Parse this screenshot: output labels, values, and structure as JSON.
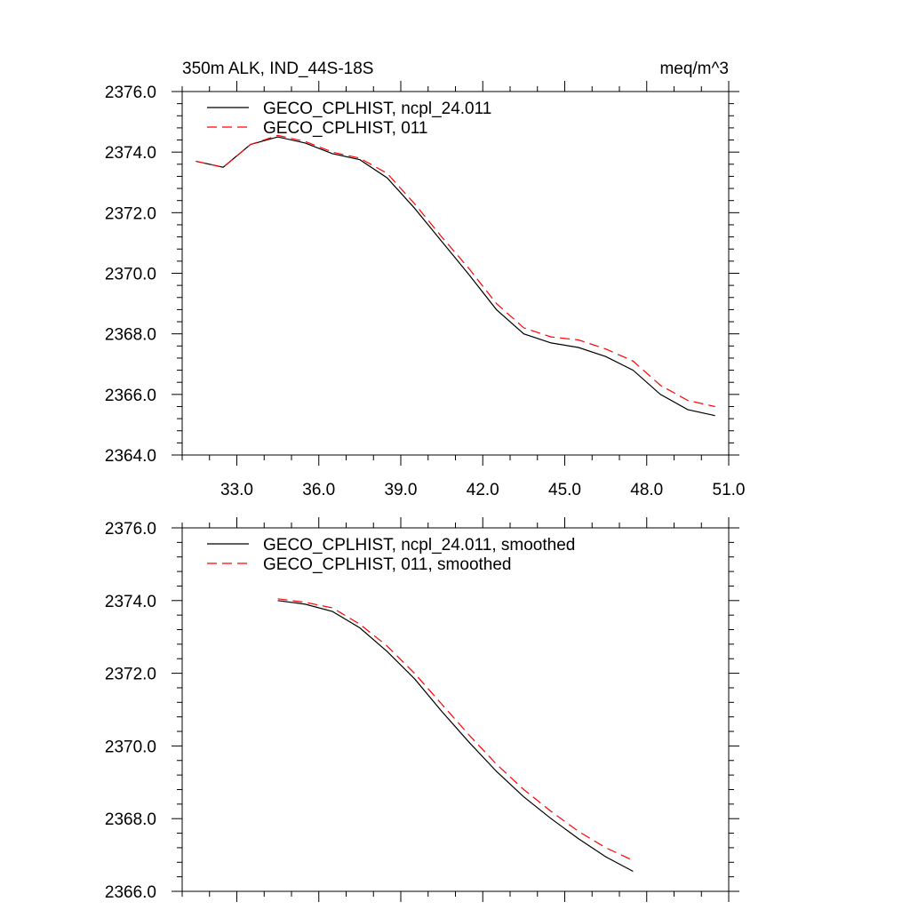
{
  "chart_data": [
    {
      "type": "line",
      "title_left": "350m ALK, IND_44S-18S",
      "title_right": "meq/m^3",
      "xlabel": "",
      "ylabel": "",
      "xlim": [
        31.0,
        51.0
      ],
      "ylim": [
        2364.0,
        2376.0
      ],
      "x_ticks": [
        33.0,
        36.0,
        39.0,
        42.0,
        45.0,
        48.0,
        51.0
      ],
      "x_tick_labels": [
        "33.0",
        "36.0",
        "39.0",
        "42.0",
        "45.0",
        "48.0",
        "51.0"
      ],
      "y_ticks": [
        2364.0,
        2366.0,
        2368.0,
        2370.0,
        2372.0,
        2374.0,
        2376.0
      ],
      "y_tick_labels": [
        "2364.0",
        "2366.0",
        "2368.0",
        "2370.0",
        "2372.0",
        "2374.0",
        "2376.0"
      ],
      "grid": false,
      "legend_position": "top-left",
      "x": [
        31.5,
        32.5,
        33.5,
        34.5,
        35.5,
        36.5,
        37.5,
        38.5,
        39.5,
        40.5,
        41.5,
        42.5,
        43.5,
        44.5,
        45.5,
        46.5,
        47.5,
        48.5,
        49.5,
        50.5
      ],
      "series": [
        {
          "name": "GECO_CPLHIST, ncpl_24.011",
          "color": "#000000",
          "dash": "solid",
          "values": [
            2373.7,
            2373.5,
            2374.25,
            2374.5,
            2374.3,
            2373.95,
            2373.75,
            2373.15,
            2372.15,
            2371.05,
            2369.95,
            2368.8,
            2368.0,
            2367.7,
            2367.55,
            2367.25,
            2366.8,
            2366.0,
            2365.5,
            2365.3
          ]
        },
        {
          "name": "GECO_CPLHIST, 011",
          "color": "#ff0000",
          "dash": "dashed",
          "values": [
            2373.7,
            2373.5,
            2374.25,
            2374.55,
            2374.35,
            2374.0,
            2373.8,
            2373.3,
            2372.3,
            2371.2,
            2370.15,
            2369.0,
            2368.2,
            2367.9,
            2367.8,
            2367.5,
            2367.1,
            2366.3,
            2365.8,
            2365.6
          ]
        }
      ]
    },
    {
      "type": "line",
      "xlabel": "",
      "ylabel": "",
      "xlim": [
        31.0,
        51.0
      ],
      "ylim": [
        2366.0,
        2376.0
      ],
      "x_ticks": [
        33.0,
        36.0,
        39.0,
        42.0,
        45.0,
        48.0,
        51.0
      ],
      "y_ticks": [
        2366.0,
        2368.0,
        2370.0,
        2372.0,
        2374.0,
        2376.0
      ],
      "y_tick_labels": [
        "2366.0",
        "2368.0",
        "2370.0",
        "2372.0",
        "2374.0",
        "2376.0"
      ],
      "grid": false,
      "legend_position": "top-left",
      "x": [
        34.5,
        35.5,
        36.5,
        37.5,
        38.5,
        39.5,
        40.5,
        41.5,
        42.5,
        43.5,
        44.5,
        45.5,
        46.5,
        47.5
      ],
      "series": [
        {
          "name": "GECO_CPLHIST, ncpl_24.011, smoothed",
          "color": "#000000",
          "dash": "solid",
          "values": [
            2374.0,
            2373.9,
            2373.7,
            2373.25,
            2372.6,
            2371.85,
            2370.95,
            2370.1,
            2369.3,
            2368.6,
            2368.0,
            2367.45,
            2366.95,
            2366.55
          ]
        },
        {
          "name": "GECO_CPLHIST, 011, smoothed",
          "color": "#ff0000",
          "dash": "dashed",
          "values": [
            2374.05,
            2373.95,
            2373.8,
            2373.35,
            2372.75,
            2372.0,
            2371.15,
            2370.3,
            2369.5,
            2368.8,
            2368.2,
            2367.65,
            2367.2,
            2366.85
          ]
        }
      ]
    }
  ]
}
